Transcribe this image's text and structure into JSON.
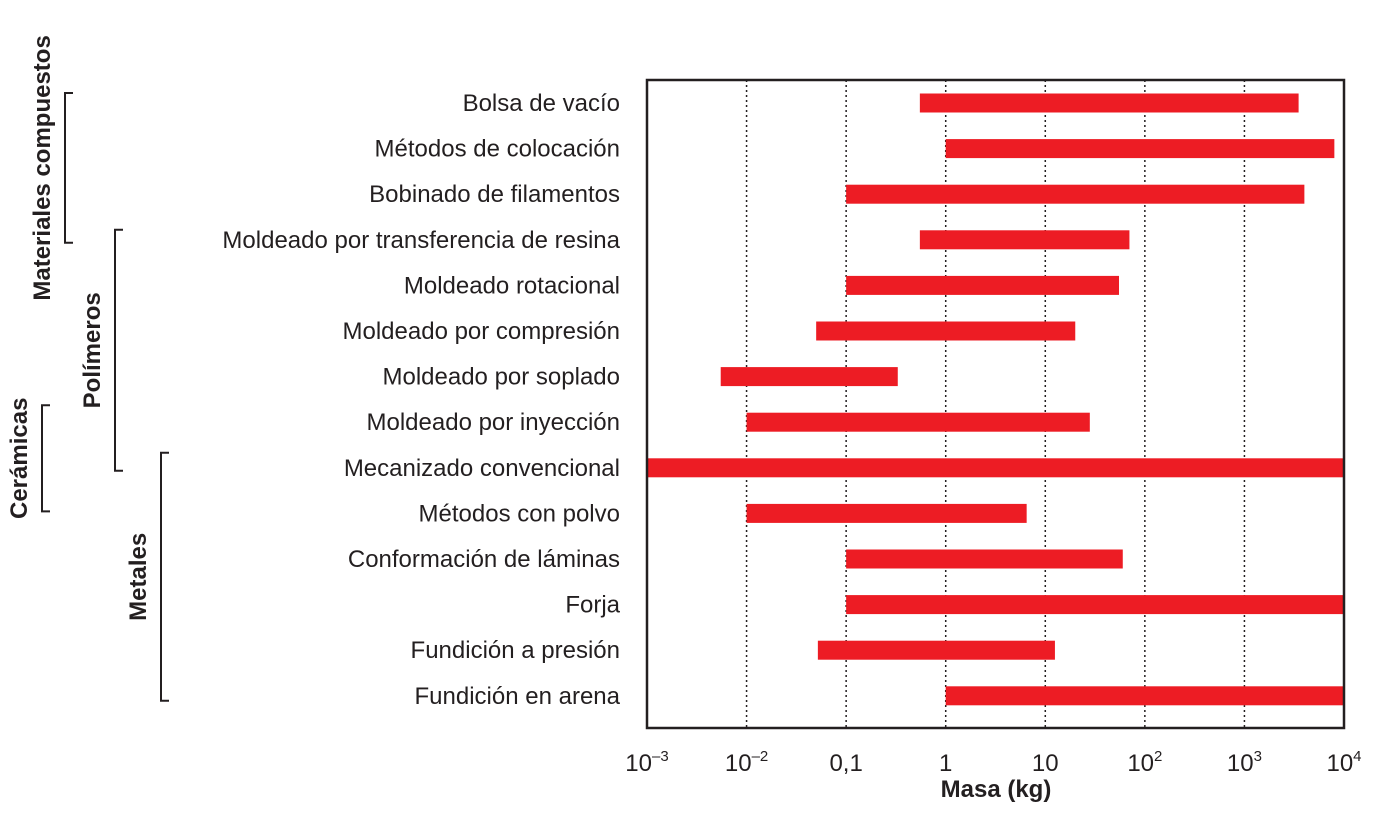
{
  "chart_data": {
    "type": "bar",
    "orientation": "horizontal",
    "xscale": "log",
    "xlabel": "Masa (kg)",
    "xlim": [
      0.001,
      10000
    ],
    "grid": "vertical-dotted",
    "bar_color": "#ed1c24",
    "x_ticks": [
      {
        "value": 0.001,
        "base": "10",
        "sup": "–3",
        "text": ""
      },
      {
        "value": 0.01,
        "base": "10",
        "sup": "–2",
        "text": ""
      },
      {
        "value": 0.1,
        "base": "",
        "sup": "",
        "text": "0,1"
      },
      {
        "value": 1,
        "base": "",
        "sup": "",
        "text": "1"
      },
      {
        "value": 10,
        "base": "",
        "sup": "",
        "text": "10"
      },
      {
        "value": 100,
        "base": "10",
        "sup": "2",
        "text": ""
      },
      {
        "value": 1000,
        "base": "10",
        "sup": "3",
        "text": ""
      },
      {
        "value": 10000,
        "base": "10",
        "sup": "4",
        "text": ""
      }
    ],
    "categories": [
      {
        "label": "Bolsa de vacío",
        "min": 0.55,
        "max": 3500
      },
      {
        "label": "Métodos de colocación",
        "min": 1,
        "max": 8000
      },
      {
        "label": "Bobinado de filamentos",
        "min": 0.1,
        "max": 4000
      },
      {
        "label": "Moldeado por transferencia de resina",
        "min": 0.55,
        "max": 70
      },
      {
        "label": "Moldeado rotacional",
        "min": 0.1,
        "max": 55
      },
      {
        "label": "Moldeado por compresión",
        "min": 0.05,
        "max": 20
      },
      {
        "label": "Moldeado por soplado",
        "min": 0.0055,
        "max": 0.33
      },
      {
        "label": "Moldeado por inyección",
        "min": 0.01,
        "max": 28
      },
      {
        "label": "Mecanizado convencional",
        "min": 0.001,
        "max": 10000
      },
      {
        "label": "Métodos con polvo",
        "min": 0.01,
        "max": 6.5
      },
      {
        "label": "Conformación de láminas",
        "min": 0.1,
        "max": 60
      },
      {
        "label": "Forja",
        "min": 0.1,
        "max": 10000
      },
      {
        "label": "Fundición a presión",
        "min": 0.052,
        "max": 12.5
      },
      {
        "label": "Fundición en arena",
        "min": 1,
        "max": 10000
      }
    ],
    "groups": [
      {
        "name": "Materiales compuestos",
        "first": 0,
        "last": 3
      },
      {
        "name": "Polímeros",
        "first": 3,
        "last": 8
      },
      {
        "name": "Cerámicas",
        "first": 7,
        "last": 9
      },
      {
        "name": "Metales",
        "first": 8,
        "last": 13
      }
    ]
  }
}
